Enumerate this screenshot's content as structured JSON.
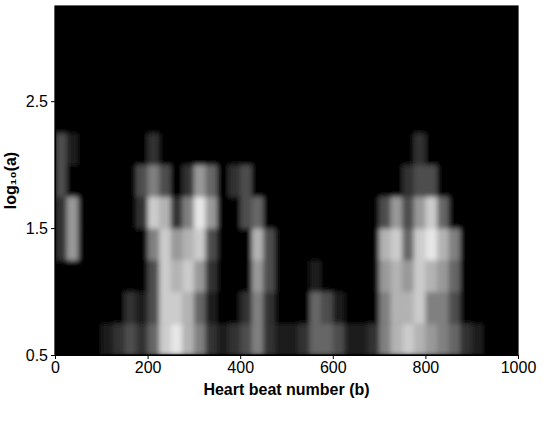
{
  "chart_data": {
    "type": "heatmap",
    "x_label": "Heart beat number (b)",
    "y_label": "log₁₀(a)",
    "xlim": [
      0,
      1000
    ],
    "ylim": [
      0.5,
      3.25
    ],
    "xticks": [
      0,
      200,
      400,
      600,
      800,
      1000
    ],
    "yticks": [
      0.5,
      1.5,
      2.5
    ],
    "zlim": [
      0,
      1
    ],
    "xbins": [
      0,
      25,
      50,
      75,
      100,
      125,
      150,
      175,
      200,
      225,
      250,
      275,
      300,
      325,
      350,
      375,
      400,
      425,
      450,
      475,
      500,
      525,
      550,
      575,
      600,
      625,
      650,
      675,
      700,
      725,
      750,
      775,
      800,
      825,
      850,
      875,
      900,
      925,
      950,
      975,
      1000
    ],
    "ybins": [
      0.5,
      0.75,
      1.0,
      1.25,
      1.5,
      1.75,
      2.0,
      2.25,
      2.5,
      2.75,
      3.0,
      3.25
    ],
    "z": [
      [
        0,
        0,
        0,
        0,
        0.1,
        0.2,
        0.3,
        0.2,
        0.4,
        0.8,
        0.9,
        0.7,
        0.5,
        0.2,
        0.1,
        0.2,
        0.3,
        0.5,
        0.2,
        0.1,
        0.1,
        0.2,
        0.4,
        0.4,
        0.3,
        0.1,
        0.1,
        0.2,
        0.5,
        0.7,
        0.8,
        0.7,
        0.6,
        0.5,
        0.4,
        0.2,
        0.1,
        0,
        0,
        0
      ],
      [
        0,
        0,
        0,
        0,
        0,
        0,
        0.2,
        0.1,
        0.3,
        0.8,
        0.8,
        0.7,
        0.4,
        0.1,
        0,
        0,
        0.2,
        0.5,
        0.2,
        0,
        0,
        0,
        0.4,
        0.3,
        0.1,
        0,
        0,
        0,
        0.5,
        0.7,
        0.7,
        0.8,
        0.5,
        0.5,
        0.3,
        0,
        0,
        0,
        0,
        0
      ],
      [
        0,
        0,
        0,
        0,
        0,
        0,
        0,
        0,
        0.3,
        0.8,
        0.7,
        0.8,
        0.6,
        0.2,
        0,
        0,
        0,
        0.6,
        0.3,
        0,
        0,
        0,
        0.1,
        0,
        0,
        0,
        0,
        0,
        0.6,
        0.7,
        0.6,
        0.8,
        0.7,
        0.6,
        0.4,
        0,
        0,
        0,
        0,
        0
      ],
      [
        0.2,
        0.6,
        0,
        0,
        0,
        0,
        0,
        0,
        0.5,
        0.8,
        0.6,
        0.7,
        0.8,
        0.3,
        0,
        0,
        0,
        0.7,
        0.3,
        0,
        0,
        0,
        0,
        0,
        0,
        0,
        0,
        0,
        0.7,
        0.8,
        0.4,
        0.8,
        0.9,
        0.7,
        0.5,
        0,
        0,
        0,
        0,
        0
      ],
      [
        0.2,
        0.6,
        0,
        0,
        0,
        0,
        0,
        0.2,
        0.8,
        0.7,
        0.2,
        0.5,
        0.9,
        0.6,
        0,
        0,
        0.3,
        0.4,
        0,
        0,
        0,
        0,
        0,
        0,
        0,
        0,
        0,
        0,
        0.3,
        0.6,
        0.3,
        0.6,
        0.8,
        0.4,
        0,
        0,
        0,
        0,
        0,
        0
      ],
      [
        0.3,
        0,
        0,
        0,
        0,
        0,
        0,
        0.3,
        0.5,
        0.3,
        0,
        0.2,
        0.6,
        0.4,
        0,
        0.2,
        0.3,
        0,
        0,
        0,
        0,
        0,
        0,
        0,
        0,
        0,
        0,
        0,
        0,
        0,
        0.2,
        0.3,
        0.3,
        0,
        0,
        0,
        0,
        0,
        0,
        0
      ],
      [
        0.3,
        0.1,
        0,
        0,
        0,
        0,
        0,
        0,
        0.2,
        0,
        0,
        0,
        0,
        0,
        0,
        0,
        0,
        0,
        0,
        0,
        0,
        0,
        0,
        0,
        0,
        0,
        0,
        0,
        0,
        0,
        0,
        0.2,
        0,
        0,
        0,
        0,
        0,
        0,
        0,
        0
      ],
      [
        0,
        0,
        0,
        0,
        0,
        0,
        0,
        0,
        0,
        0,
        0,
        0,
        0,
        0,
        0,
        0,
        0,
        0,
        0,
        0,
        0,
        0,
        0,
        0,
        0,
        0,
        0,
        0,
        0,
        0,
        0,
        0,
        0,
        0,
        0,
        0,
        0,
        0,
        0,
        0
      ],
      [
        0,
        0,
        0,
        0,
        0,
        0,
        0,
        0,
        0,
        0,
        0,
        0,
        0,
        0,
        0,
        0,
        0,
        0,
        0,
        0,
        0,
        0,
        0,
        0,
        0,
        0,
        0,
        0,
        0,
        0,
        0,
        0,
        0,
        0,
        0,
        0,
        0,
        0,
        0,
        0
      ],
      [
        0,
        0,
        0,
        0,
        0,
        0,
        0,
        0,
        0,
        0,
        0,
        0,
        0,
        0,
        0,
        0,
        0,
        0,
        0,
        0,
        0,
        0,
        0,
        0,
        0,
        0,
        0,
        0,
        0,
        0,
        0,
        0,
        0,
        0,
        0,
        0,
        0,
        0,
        0,
        0
      ],
      [
        0,
        0,
        0,
        0,
        0,
        0,
        0,
        0,
        0,
        0,
        0,
        0,
        0,
        0,
        0,
        0,
        0,
        0,
        0,
        0,
        0,
        0,
        0,
        0,
        0,
        0,
        0,
        0,
        0,
        0,
        0,
        0,
        0,
        0,
        0,
        0,
        0,
        0,
        0,
        0
      ]
    ]
  }
}
